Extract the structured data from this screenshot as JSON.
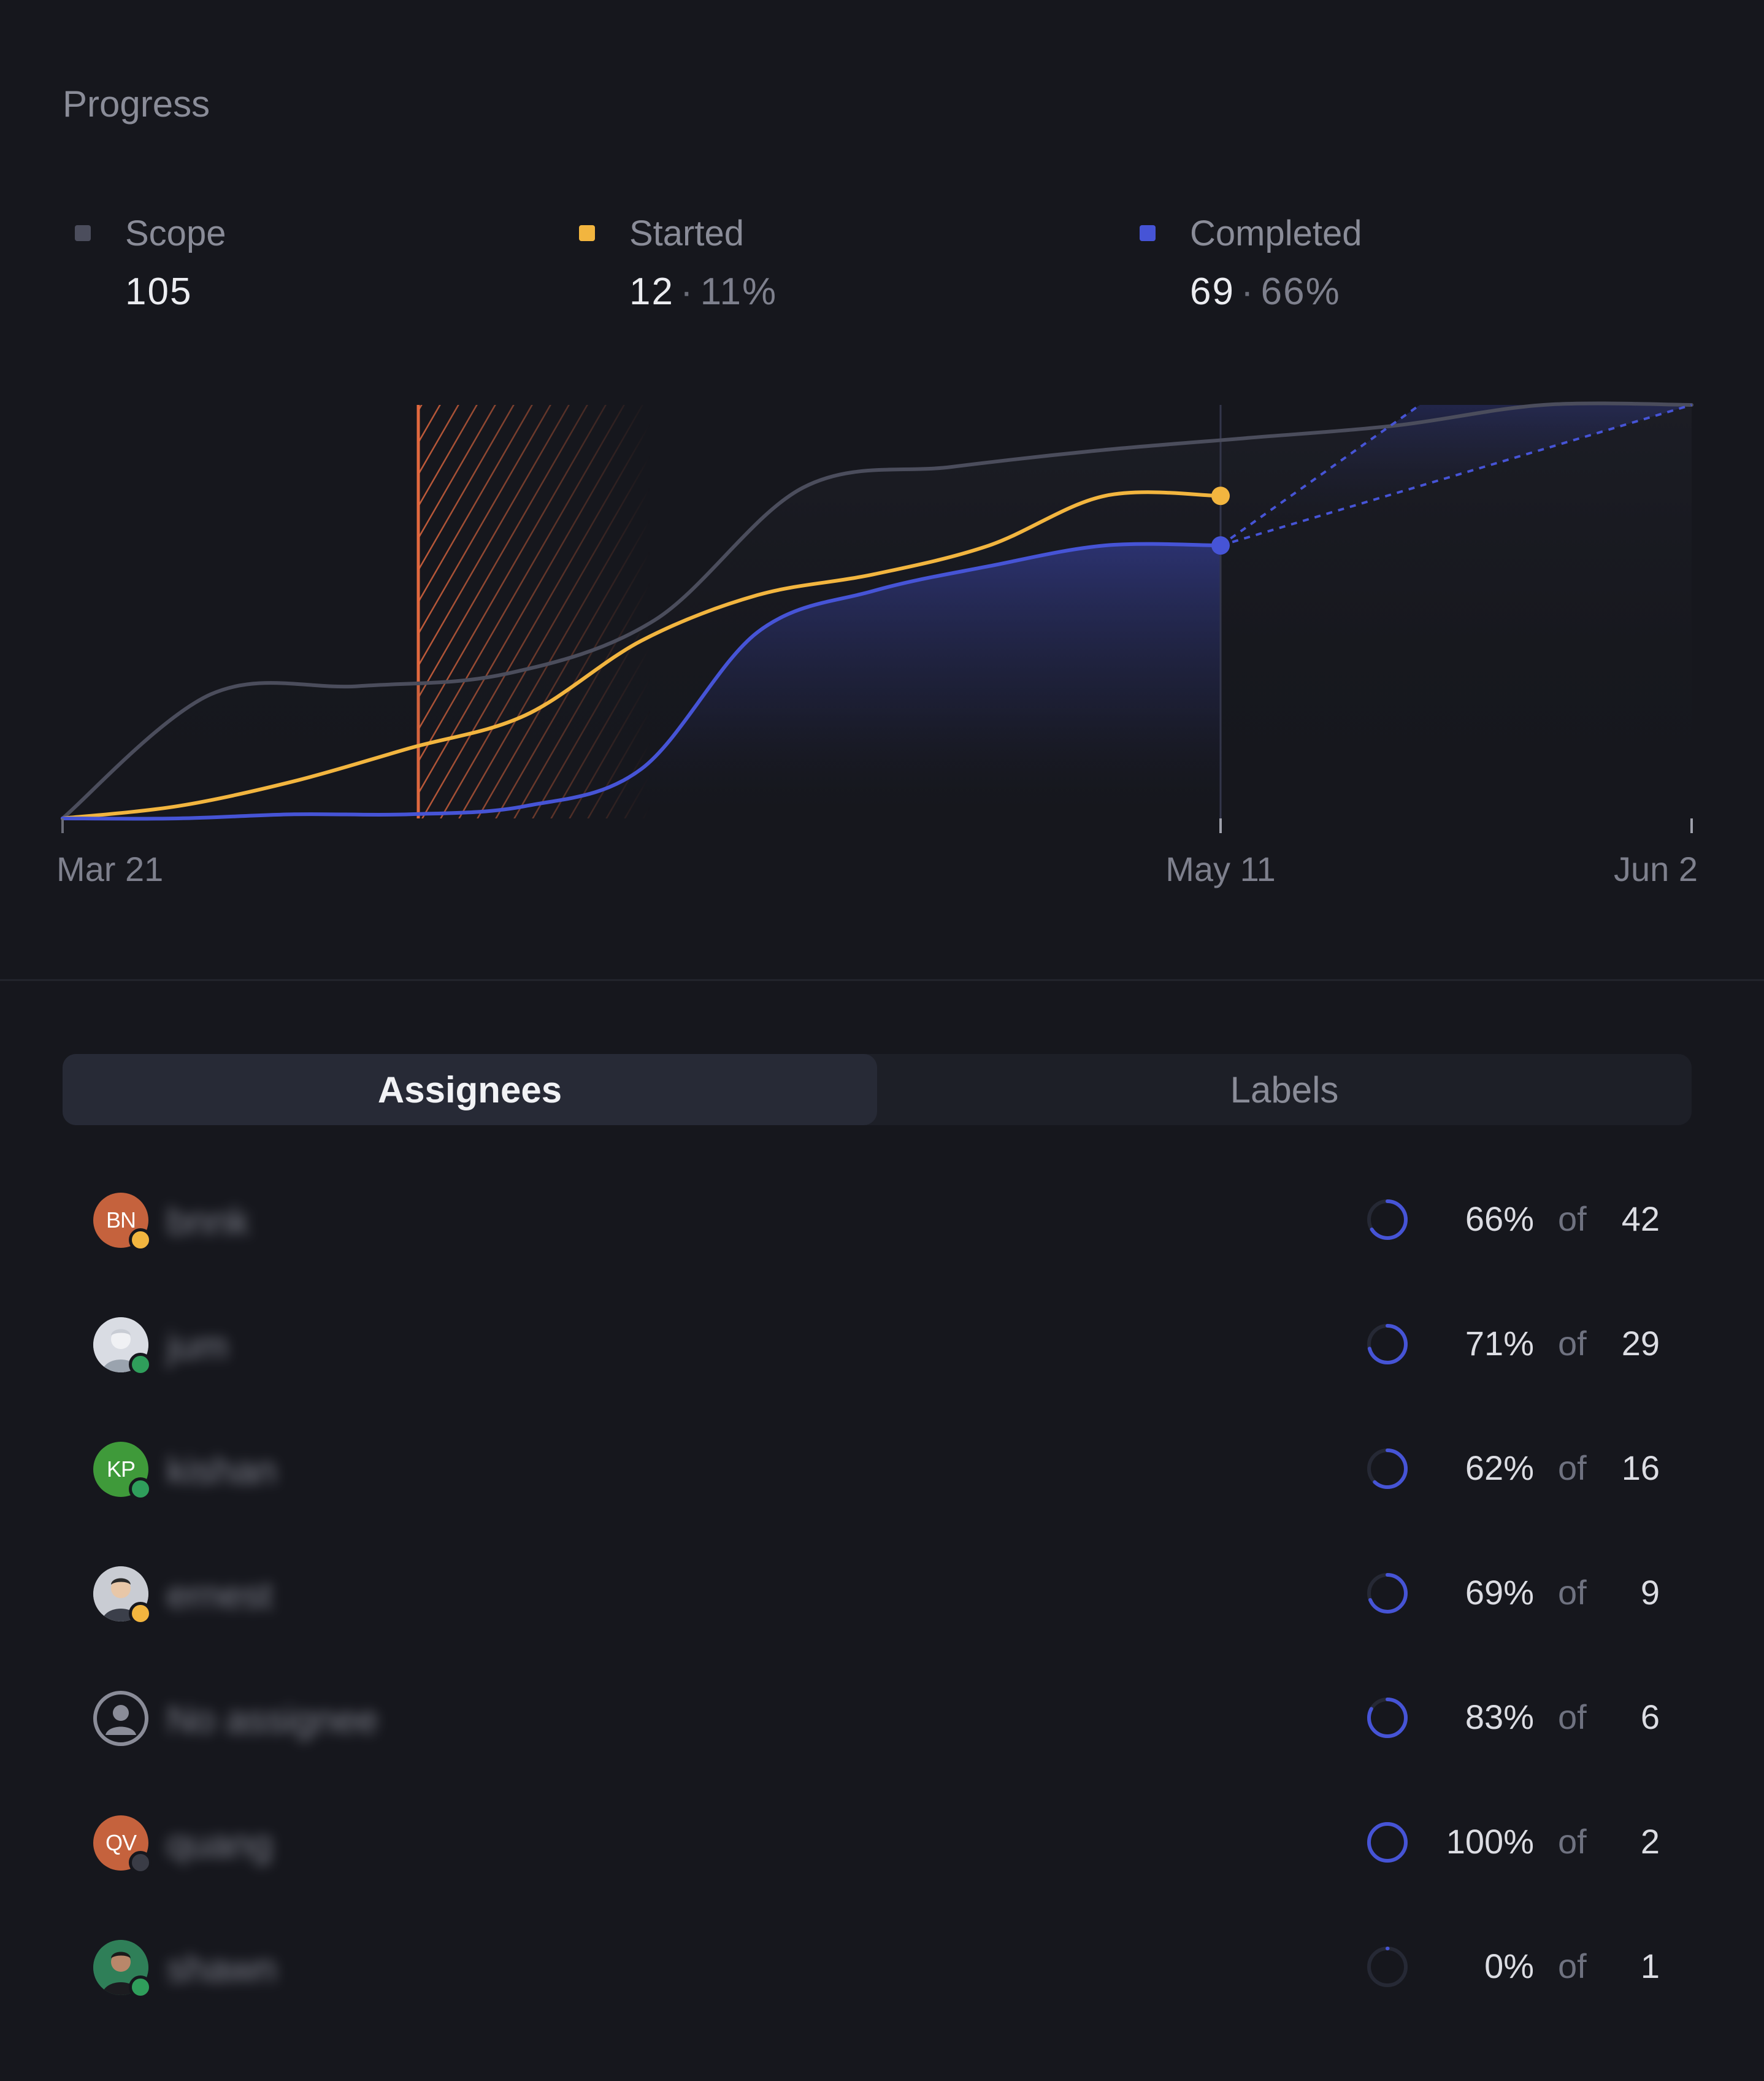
{
  "progress": {
    "title": "Progress",
    "stats": [
      {
        "label": "Scope",
        "value": "105",
        "percent": "",
        "color": "#4b4d5c"
      },
      {
        "label": "Started",
        "value": "12",
        "percent": "11%",
        "color": "#f2b53f"
      },
      {
        "label": "Completed",
        "value": "69",
        "percent": "66%",
        "color": "#4654d6"
      }
    ]
  },
  "chart_data": {
    "type": "line",
    "x_ticks": [
      "Mar 21",
      "May 11",
      "Jun 2"
    ],
    "series": [
      {
        "name": "Scope",
        "color": "#4b4d5c",
        "values": [
          0,
          30,
          32,
          35,
          48,
          80,
          85,
          89,
          92,
          95,
          100,
          100
        ]
      },
      {
        "name": "Started",
        "color": "#f2b53f",
        "values": [
          0,
          3,
          9,
          17,
          25,
          43,
          54,
          59,
          66,
          78,
          78
        ]
      },
      {
        "name": "Completed",
        "color": "#4654d6",
        "values": [
          0,
          0,
          1,
          1,
          3,
          12,
          45,
          55,
          61,
          66,
          66
        ]
      }
    ],
    "colors": {
      "hatch": "#e2693f",
      "projection": "#4654d6"
    }
  },
  "tabs": [
    {
      "label": "Assignees",
      "active": true
    },
    {
      "label": "Labels",
      "active": false
    }
  ],
  "assignees": [
    {
      "initials": "BN",
      "name": "bnnk",
      "avatar_color": "#c5623d",
      "status_color": "#f2b53f",
      "avatar_kind": "initials",
      "progress": 0.66,
      "percent": "66%",
      "of": "of",
      "count": "42"
    },
    {
      "initials": "",
      "name": "jum",
      "avatar_color": "#d9dce3",
      "status_color": "#2f9e5b",
      "avatar_kind": "photo-light",
      "progress": 0.71,
      "percent": "71%",
      "of": "of",
      "count": "29"
    },
    {
      "initials": "KP",
      "name": "kishan",
      "avatar_color": "#3f9a3a",
      "status_color": "#2f9e5b",
      "avatar_kind": "initials",
      "progress": 0.62,
      "percent": "62%",
      "of": "of",
      "count": "16"
    },
    {
      "initials": "",
      "name": "ernest",
      "avatar_color": "#c9ccd3",
      "status_color": "#f2b53f",
      "avatar_kind": "photo-person",
      "progress": 0.69,
      "percent": "69%",
      "of": "of",
      "count": "9"
    },
    {
      "initials": "",
      "name": "No assignee",
      "avatar_color": "#16171d",
      "status_color": "",
      "avatar_kind": "placeholder",
      "progress": 0.83,
      "percent": "83%",
      "of": "of",
      "count": "6"
    },
    {
      "initials": "QV",
      "name": "quang",
      "avatar_color": "#c5623d",
      "status_color": "#3a3c46",
      "avatar_kind": "initials",
      "progress": 1.0,
      "percent": "100%",
      "of": "of",
      "count": "2"
    },
    {
      "initials": "",
      "name": "shawn",
      "avatar_color": "#2f7f58",
      "status_color": "#2f9e5b",
      "avatar_kind": "photo-dark",
      "progress": 0.0,
      "percent": "0%",
      "of": "of",
      "count": "1"
    }
  ]
}
